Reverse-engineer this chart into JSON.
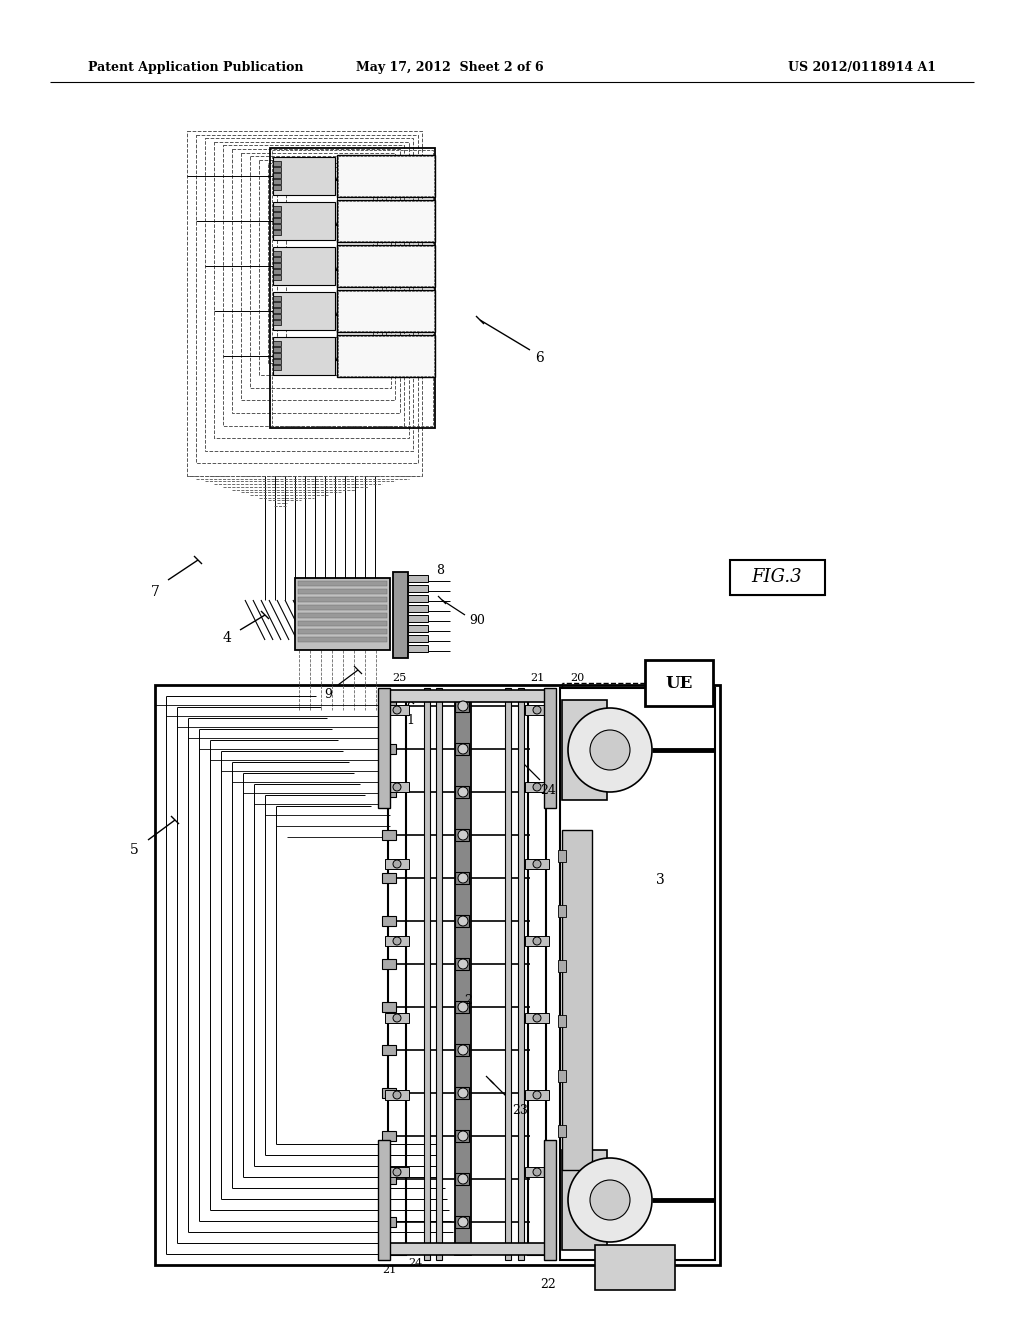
{
  "header_left": "Patent Application Publication",
  "header_center": "May 17, 2012  Sheet 2 of 6",
  "header_right": "US 2012/0118914 A1",
  "fig_label": "FIG.3",
  "bg_color": "#ffffff"
}
